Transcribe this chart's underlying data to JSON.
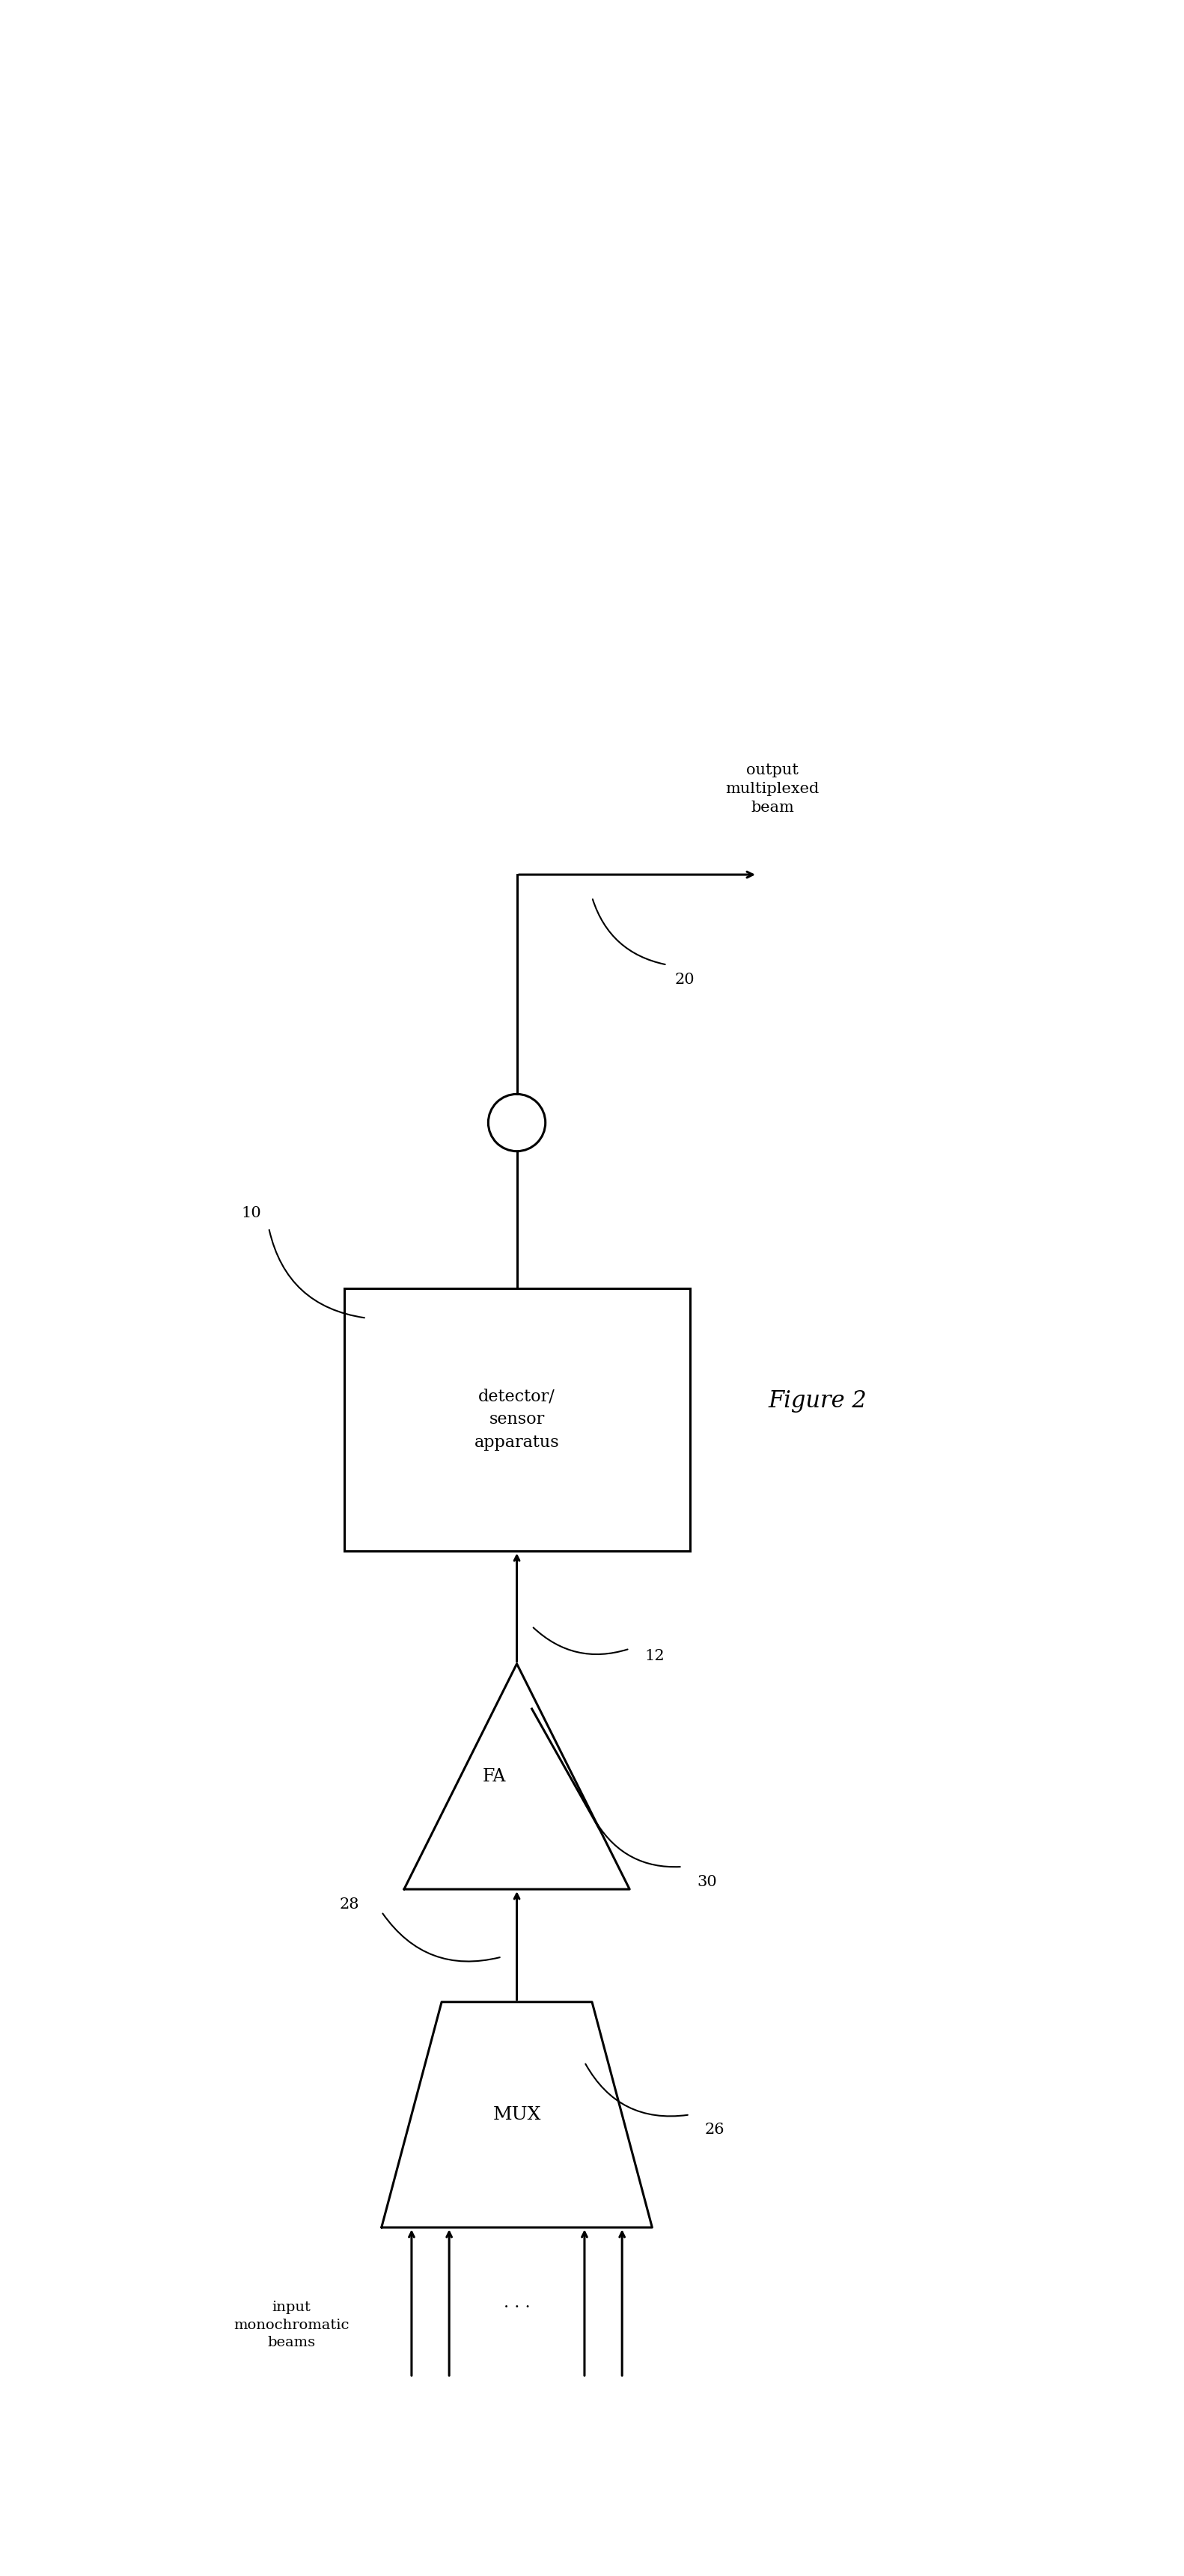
{
  "bg_color": "#ffffff",
  "line_color": "#000000",
  "fig_width": 15.82,
  "fig_height": 34.43,
  "title": "Figure 2",
  "labels": {
    "output_beam": "output\nmultiplexed\nbeam",
    "detector": "detector/\nsensor\napparatus",
    "fa": "FA",
    "mux": "MUX",
    "input_beams": "input\nmonochromatic\nbeams"
  },
  "ref_numbers": {
    "n10": "10",
    "n12": "12",
    "n20": "20",
    "n26": "26",
    "n28": "28",
    "n30": "30"
  },
  "font_size": 14,
  "line_width": 2.2
}
